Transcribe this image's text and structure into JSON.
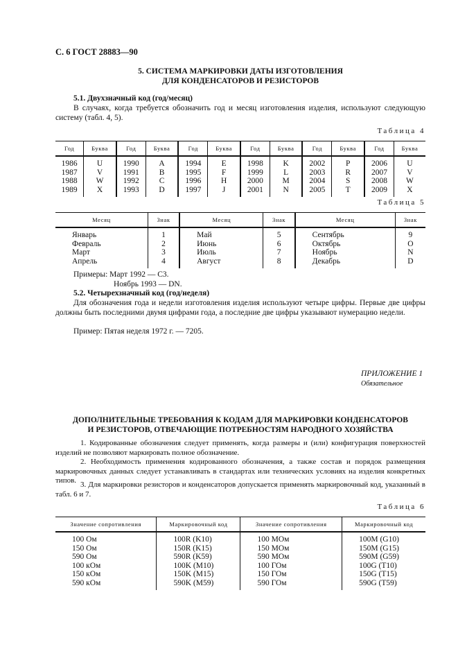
{
  "header": "С. 6 ГОСТ 28883—90",
  "section5": {
    "title1": "5. СИСТЕМА МАРКИРОВКИ ДАТЫ ИЗГОТОВЛЕНИЯ",
    "title2": "ДЛЯ КОНДЕНСАТОРОВ И РЕЗИСТОРОВ",
    "s51_heading": "5.1. Двухзначный код (год/месяц)",
    "s51_text": "В случаях, когда требуется обозначить год и месяц изготовления изделия, используют следующую систему (табл. 4, 5).",
    "table4_label": "Таблица 4",
    "table5_label": "Таблица 5",
    "examples1": "Примеры: Март 1992 — С3.",
    "examples2": "Ноябрь 1993 — DN.",
    "s52_heading": "5.2. Четырехзначный код (год/неделя)",
    "s52_text": "Для обозначения года и недели изготовления изделия используют четыре цифры. Первые две цифры должны быть последними двумя цифрами года, а последние две цифры указывают нумерацию недели.",
    "s52_example": "Пример: Пятая неделя 1972 г. — 7205."
  },
  "table4": {
    "headers": [
      "Год",
      "Буква",
      "Год",
      "Буква",
      "Год",
      "Буква",
      "Год",
      "Буква",
      "Год",
      "Буква",
      "Год",
      "Буква"
    ],
    "rows": [
      [
        "1986",
        "U",
        "1990",
        "A",
        "1994",
        "E",
        "1998",
        "K",
        "2002",
        "P",
        "2006",
        "U"
      ],
      [
        "1987",
        "V",
        "1991",
        "B",
        "1995",
        "F",
        "1999",
        "L",
        "2003",
        "R",
        "2007",
        "V"
      ],
      [
        "1988",
        "W",
        "1992",
        "C",
        "1996",
        "H",
        "2000",
        "M",
        "2004",
        "S",
        "2008",
        "W"
      ],
      [
        "1989",
        "X",
        "1993",
        "D",
        "1997",
        "J",
        "2001",
        "N",
        "2005",
        "T",
        "2009",
        "X"
      ]
    ]
  },
  "table5": {
    "headers": [
      "Месяц",
      "Знак",
      "Месяц",
      "Знак",
      "Месяц",
      "Знак"
    ],
    "rows": [
      [
        "Январь",
        "1",
        "Май",
        "5",
        "Сентябрь",
        "9"
      ],
      [
        "Февраль",
        "2",
        "Июнь",
        "6",
        "Октябрь",
        "O"
      ],
      [
        "Март",
        "3",
        "Июль",
        "7",
        "Ноябрь",
        "N"
      ],
      [
        "Апрель",
        "4",
        "Август",
        "8",
        "Декабрь",
        "D"
      ]
    ]
  },
  "appendix": {
    "label": "ПРИЛОЖЕНИЕ 1",
    "status": "Обязательное",
    "title1": "ДОПОЛНИТЕЛЬНЫЕ ТРЕБОВАНИЯ К КОДАМ ДЛЯ МАРКИРОВКИ КОНДЕНСАТОРОВ",
    "title2": "И РЕЗИСТОРОВ, ОТВЕЧАЮЩИЕ ПОТРЕБНОСТЯМ НАРОДНОГО ХОЗЯЙСТВА",
    "p1": "1. Кодированные обозначения следует применять, когда размеры и (или) конфигурация поверхностей изделий не позволяют маркировать полное обозначение.",
    "p2": "2. Необходимость применения кодированного обозначения, а также состав и порядок размещения маркировочных данных следует устанавливать в стандартах или технических условиях на изделия конкретных типов.",
    "p3": "3. Для маркировки резисторов и конденсаторов допускается применять маркировочный код, указанный в табл. 6 и 7.",
    "table6_label": "Таблица 6"
  },
  "table6": {
    "headers": [
      "Значение сопротивления",
      "Маркировочный код",
      "Значение сопротивления",
      "Маркировочный код"
    ],
    "rows": [
      [
        "100 Ом",
        "100R (K10)",
        "100 МОм",
        "100M (G10)"
      ],
      [
        "150 Ом",
        "150R (K15)",
        "150 МОм",
        "150M (G15)"
      ],
      [
        "590 Ом",
        "590R (K59)",
        "590 МОм",
        "590M (G59)"
      ],
      [
        "100 кОм",
        "100K (M10)",
        "100 ГОм",
        "100G (T10)"
      ],
      [
        "150 кОм",
        "150K (M15)",
        "150 ГОм",
        "150G (T15)"
      ],
      [
        "590 кОм",
        "590K (M59)",
        "590 ГОм",
        "590G (T59)"
      ]
    ]
  }
}
